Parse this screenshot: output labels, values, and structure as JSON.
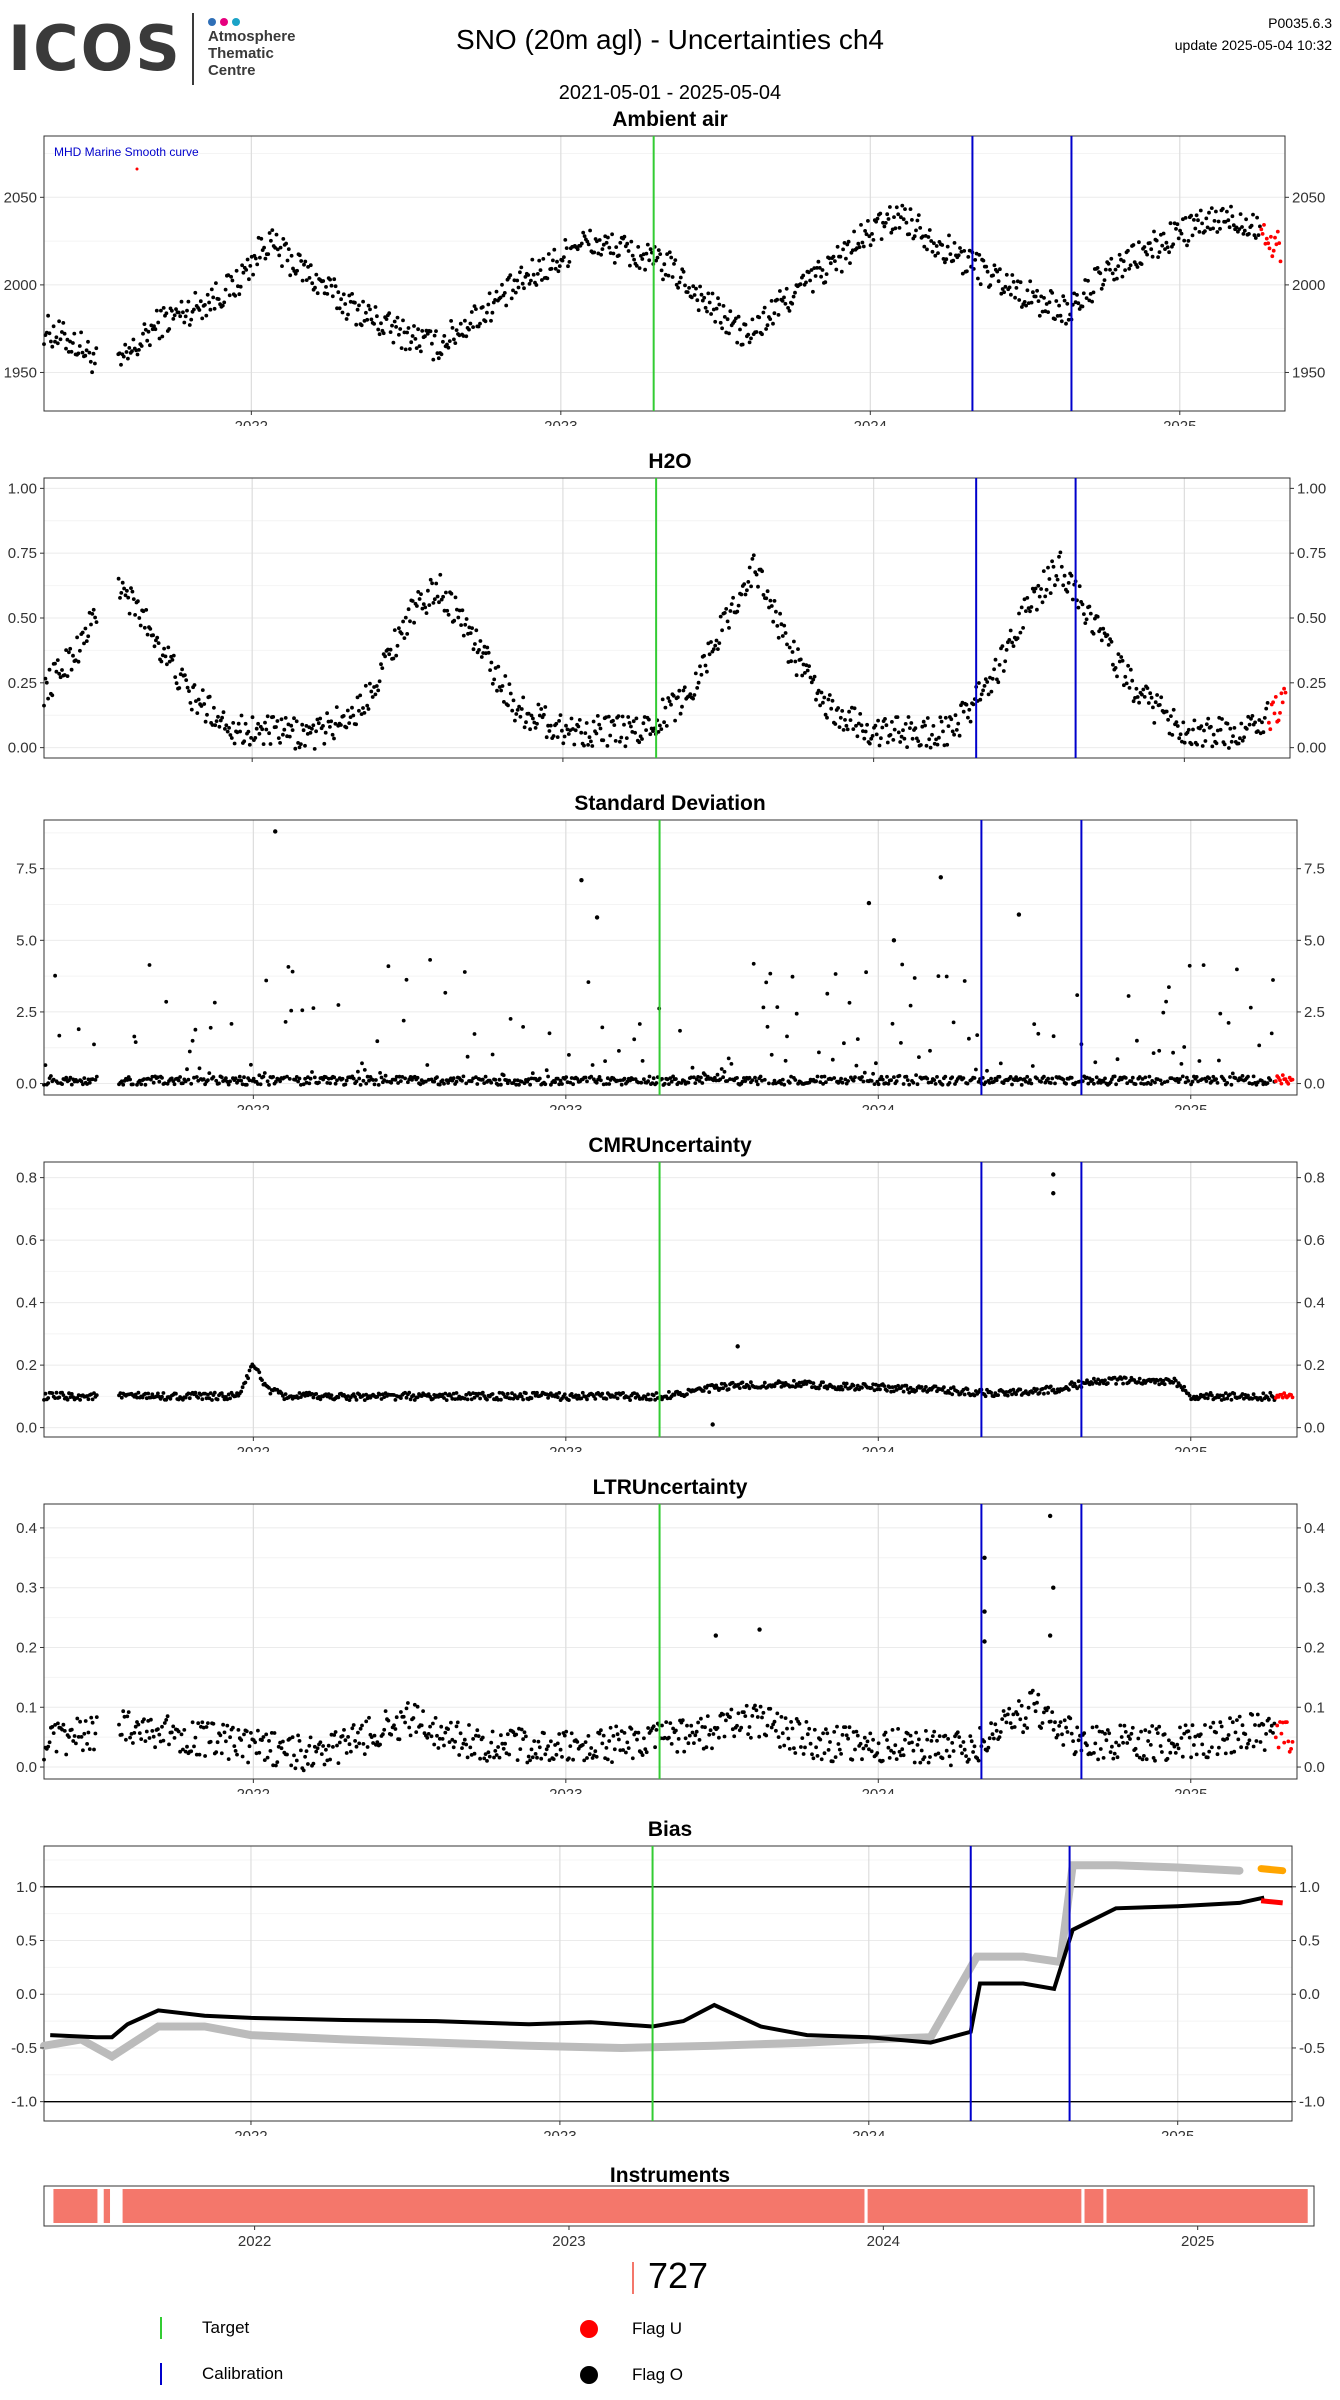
{
  "header": {
    "logo_main": "ICOS",
    "logo_side": [
      "Atmosphere",
      "Thematic",
      "Centre"
    ],
    "logo_dot_colors": [
      "#2f6fb7",
      "#e6007e",
      "#1ba3c7"
    ],
    "title": "SNO  (20m agl) - Uncertainties ch4",
    "date_range": "2021-05-01 - 2025-05-04",
    "version": "P0035.6.3",
    "update": "update  2025-05-04 10:32"
  },
  "chart_data": [
    {
      "id": "ambient",
      "type": "scatter",
      "title": "Ambient air",
      "xlim": [
        2021.33,
        2025.34
      ],
      "ylim": [
        1928,
        2085
      ],
      "yticks": [
        1950,
        2000,
        2050
      ],
      "ytick_labels": [
        "1950",
        "2000",
        "2050"
      ],
      "annotation": "MHD Marine Smooth curve",
      "annotation_color": "#0000cc",
      "baseline": [
        [
          2021.33,
          1975
        ],
        [
          2021.45,
          1965
        ],
        [
          2021.52,
          1952
        ],
        [
          2021.58,
          1955
        ],
        [
          2021.7,
          1978
        ],
        [
          2021.85,
          1990
        ],
        [
          2021.95,
          2000
        ],
        [
          2022.05,
          2025
        ],
        [
          2022.12,
          2015
        ],
        [
          2022.3,
          1990
        ],
        [
          2022.45,
          1975
        ],
        [
          2022.6,
          1965
        ],
        [
          2022.75,
          1985
        ],
        [
          2022.9,
          2005
        ],
        [
          2023.0,
          2015
        ],
        [
          2023.05,
          2025
        ],
        [
          2023.2,
          2020
        ],
        [
          2023.35,
          2010
        ],
        [
          2023.5,
          1985
        ],
        [
          2023.6,
          1970
        ],
        [
          2023.75,
          1995
        ],
        [
          2023.9,
          2015
        ],
        [
          2024.0,
          2030
        ],
        [
          2024.1,
          2040
        ],
        [
          2024.25,
          2020
        ],
        [
          2024.4,
          2005
        ],
        [
          2024.55,
          1990
        ],
        [
          2024.65,
          1985
        ],
        [
          2024.72,
          2000
        ],
        [
          2024.85,
          2015
        ],
        [
          2025.0,
          2030
        ],
        [
          2025.15,
          2038
        ],
        [
          2025.25,
          2035
        ],
        [
          2025.3,
          2022
        ]
      ],
      "noise": 9,
      "red_from": 2025.26
    },
    {
      "id": "h2o",
      "type": "scatter",
      "title": "H2O",
      "xlim": [
        2021.33,
        2025.34
      ],
      "ylim": [
        -0.04,
        1.04
      ],
      "yticks": [
        0,
        0.25,
        0.5,
        0.75,
        1
      ],
      "ytick_labels": [
        "0.00",
        "0.25",
        "0.50",
        "0.75",
        "1.00"
      ],
      "baseline": [
        [
          2021.33,
          0.22
        ],
        [
          2021.45,
          0.4
        ],
        [
          2021.55,
          0.65
        ],
        [
          2021.65,
          0.5
        ],
        [
          2021.8,
          0.2
        ],
        [
          2021.95,
          0.07
        ],
        [
          2022.2,
          0.05
        ],
        [
          2022.35,
          0.15
        ],
        [
          2022.5,
          0.5
        ],
        [
          2022.6,
          0.62
        ],
        [
          2022.7,
          0.45
        ],
        [
          2022.85,
          0.15
        ],
        [
          2023.0,
          0.07
        ],
        [
          2023.25,
          0.06
        ],
        [
          2023.4,
          0.2
        ],
        [
          2023.55,
          0.55
        ],
        [
          2023.62,
          0.7
        ],
        [
          2023.72,
          0.4
        ],
        [
          2023.85,
          0.15
        ],
        [
          2024.0,
          0.06
        ],
        [
          2024.25,
          0.06
        ],
        [
          2024.4,
          0.3
        ],
        [
          2024.5,
          0.55
        ],
        [
          2024.6,
          0.7
        ],
        [
          2024.7,
          0.5
        ],
        [
          2024.85,
          0.2
        ],
        [
          2025.0,
          0.07
        ],
        [
          2025.15,
          0.05
        ],
        [
          2025.25,
          0.1
        ],
        [
          2025.33,
          0.18
        ]
      ],
      "noise": 0.06,
      "red_from": 2025.27
    },
    {
      "id": "std",
      "type": "scatter",
      "title": "Standard Deviation",
      "xlim": [
        2021.33,
        2025.34
      ],
      "ylim": [
        -0.4,
        9.2
      ],
      "yticks": [
        0,
        2.5,
        5,
        7.5
      ],
      "ytick_labels": [
        "0.0",
        "2.5",
        "5.0",
        "7.5"
      ],
      "baseline": [
        [
          2021.33,
          0.1
        ],
        [
          2025.34,
          0.1
        ]
      ],
      "noise": 0.15,
      "spikes": 0.25,
      "spike_scale": 2.2,
      "outliers": [
        [
          2022.07,
          8.8
        ],
        [
          2023.05,
          7.1
        ],
        [
          2023.1,
          5.8
        ],
        [
          2023.97,
          6.3
        ],
        [
          2024.2,
          7.2
        ],
        [
          2024.45,
          5.9
        ],
        [
          2024.05,
          5.0
        ]
      ],
      "red_from": 2025.27
    },
    {
      "id": "cmr",
      "type": "scatter",
      "title": "CMRUncertainty",
      "xlim": [
        2021.33,
        2025.34
      ],
      "ylim": [
        -0.03,
        0.85
      ],
      "yticks": [
        0,
        0.2,
        0.4,
        0.6,
        0.8
      ],
      "ytick_labels": [
        "0.0",
        "0.2",
        "0.4",
        "0.6",
        "0.8"
      ],
      "baseline": [
        [
          2021.33,
          0.1
        ],
        [
          2021.95,
          0.1
        ],
        [
          2022.0,
          0.2
        ],
        [
          2022.05,
          0.12
        ],
        [
          2022.1,
          0.1
        ],
        [
          2023.3,
          0.1
        ],
        [
          2023.5,
          0.13
        ],
        [
          2023.7,
          0.14
        ],
        [
          2024.2,
          0.12
        ],
        [
          2024.35,
          0.11
        ],
        [
          2024.55,
          0.12
        ],
        [
          2024.7,
          0.15
        ],
        [
          2024.95,
          0.15
        ],
        [
          2025.0,
          0.1
        ],
        [
          2025.34,
          0.1
        ]
      ],
      "noise": 0.012,
      "outliers": [
        [
          2024.56,
          0.81
        ],
        [
          2024.56,
          0.75
        ],
        [
          2023.47,
          0.01
        ],
        [
          2023.55,
          0.26
        ]
      ],
      "red_from": 2025.27
    },
    {
      "id": "ltr",
      "type": "scatter",
      "title": "LTRUncertainty",
      "xlim": [
        2021.33,
        2025.34
      ],
      "ylim": [
        -0.02,
        0.44
      ],
      "yticks": [
        0,
        0.1,
        0.2,
        0.3,
        0.4
      ],
      "ytick_labels": [
        "0.0",
        "0.1",
        "0.2",
        "0.3",
        "0.4"
      ],
      "baseline": [
        [
          2021.33,
          0.04
        ],
        [
          2021.6,
          0.07
        ],
        [
          2021.8,
          0.05
        ],
        [
          2022.2,
          0.02
        ],
        [
          2022.5,
          0.08
        ],
        [
          2022.7,
          0.04
        ],
        [
          2023.0,
          0.03
        ],
        [
          2023.4,
          0.05
        ],
        [
          2023.6,
          0.08
        ],
        [
          2023.8,
          0.04
        ],
        [
          2024.3,
          0.03
        ],
        [
          2024.5,
          0.1
        ],
        [
          2024.65,
          0.04
        ],
        [
          2025.0,
          0.04
        ],
        [
          2025.2,
          0.06
        ],
        [
          2025.34,
          0.05
        ]
      ],
      "noise": 0.03,
      "outliers": [
        [
          2024.55,
          0.42
        ],
        [
          2024.56,
          0.3
        ],
        [
          2024.55,
          0.22
        ],
        [
          2024.34,
          0.35
        ],
        [
          2024.34,
          0.26
        ],
        [
          2024.34,
          0.21
        ],
        [
          2023.48,
          0.22
        ],
        [
          2023.62,
          0.23
        ]
      ],
      "red_from": 2025.27
    },
    {
      "id": "bias",
      "type": "line",
      "title": "Bias",
      "xlim": [
        2021.33,
        2025.37
      ],
      "ylim": [
        -1.18,
        1.38
      ],
      "yticks": [
        -1,
        -0.5,
        0,
        0.5,
        1
      ],
      "ytick_labels": [
        "-1.0",
        "-0.5",
        "0.0",
        "0.5",
        "1.0"
      ],
      "hlines": [
        1,
        -1
      ],
      "black_series": [
        [
          2021.35,
          -0.38
        ],
        [
          2021.5,
          -0.4
        ],
        [
          2021.55,
          -0.4
        ],
        [
          2021.6,
          -0.28
        ],
        [
          2021.7,
          -0.15
        ],
        [
          2021.85,
          -0.2
        ],
        [
          2022.0,
          -0.22
        ],
        [
          2022.3,
          -0.24
        ],
        [
          2022.6,
          -0.25
        ],
        [
          2022.9,
          -0.28
        ],
        [
          2023.1,
          -0.26
        ],
        [
          2023.3,
          -0.3
        ],
        [
          2023.4,
          -0.25
        ],
        [
          2023.5,
          -0.1
        ],
        [
          2023.65,
          -0.3
        ],
        [
          2023.8,
          -0.38
        ],
        [
          2024.0,
          -0.4
        ],
        [
          2024.2,
          -0.45
        ],
        [
          2024.33,
          -0.35
        ],
        [
          2024.36,
          0.1
        ],
        [
          2024.5,
          0.1
        ],
        [
          2024.6,
          0.05
        ],
        [
          2024.66,
          0.6
        ],
        [
          2024.8,
          0.8
        ],
        [
          2025.0,
          0.82
        ],
        [
          2025.2,
          0.85
        ],
        [
          2025.28,
          0.9
        ]
      ],
      "grey_series": [
        [
          2021.33,
          -0.48
        ],
        [
          2021.45,
          -0.42
        ],
        [
          2021.55,
          -0.58
        ],
        [
          2021.7,
          -0.3
        ],
        [
          2021.85,
          -0.3
        ],
        [
          2022.0,
          -0.38
        ],
        [
          2022.3,
          -0.42
        ],
        [
          2022.6,
          -0.45
        ],
        [
          2022.9,
          -0.48
        ],
        [
          2023.2,
          -0.5
        ],
        [
          2023.5,
          -0.48
        ],
        [
          2023.8,
          -0.45
        ],
        [
          2024.0,
          -0.42
        ],
        [
          2024.2,
          -0.4
        ],
        [
          2024.35,
          0.35
        ],
        [
          2024.5,
          0.35
        ],
        [
          2024.62,
          0.3
        ],
        [
          2024.66,
          1.2
        ],
        [
          2024.8,
          1.2
        ],
        [
          2025.0,
          1.18
        ],
        [
          2025.2,
          1.15
        ]
      ],
      "orange_series": [
        [
          2025.27,
          1.17
        ],
        [
          2025.34,
          1.15
        ]
      ],
      "red_series": [
        [
          2025.27,
          0.87
        ],
        [
          2025.34,
          0.85
        ]
      ]
    }
  ],
  "panels_common": {
    "xticks": [
      2022,
      2023,
      2024,
      2025
    ],
    "xtick_labels": [
      "2022",
      "2023",
      "2024",
      "2025"
    ],
    "target_x": [
      2023.3
    ],
    "calibration_x": [
      2024.33,
      2024.65
    ],
    "target_color": "#33cc33",
    "calibration_color": "#0000cc",
    "red_color": "#ff0000",
    "grey_color": "#bbbbbb",
    "orange_color": "#ffa500"
  },
  "instruments": {
    "title": "Instruments",
    "xlim": [
      2021.33,
      2025.37
    ],
    "xticks": [
      2022,
      2023,
      2024,
      2025
    ],
    "xtick_labels": [
      "2022",
      "2023",
      "2024",
      "2025"
    ],
    "fill_color": "#f4776b",
    "segments": [
      [
        2021.36,
        2021.5
      ],
      [
        2021.52,
        2021.54
      ],
      [
        2021.58,
        2023.94
      ],
      [
        2023.95,
        2024.63
      ],
      [
        2024.64,
        2024.7
      ],
      [
        2024.71,
        2025.35
      ]
    ]
  },
  "legend": {
    "instrument_count": "727",
    "items": [
      {
        "label": "Target",
        "kind": "line",
        "color": "#33cc33"
      },
      {
        "label": "Calibration",
        "kind": "line",
        "color": "#0000cc"
      },
      {
        "label": "Flag U",
        "kind": "dot",
        "color": "#ff0000"
      },
      {
        "label": "Flag O",
        "kind": "dot",
        "color": "#000000"
      }
    ]
  }
}
